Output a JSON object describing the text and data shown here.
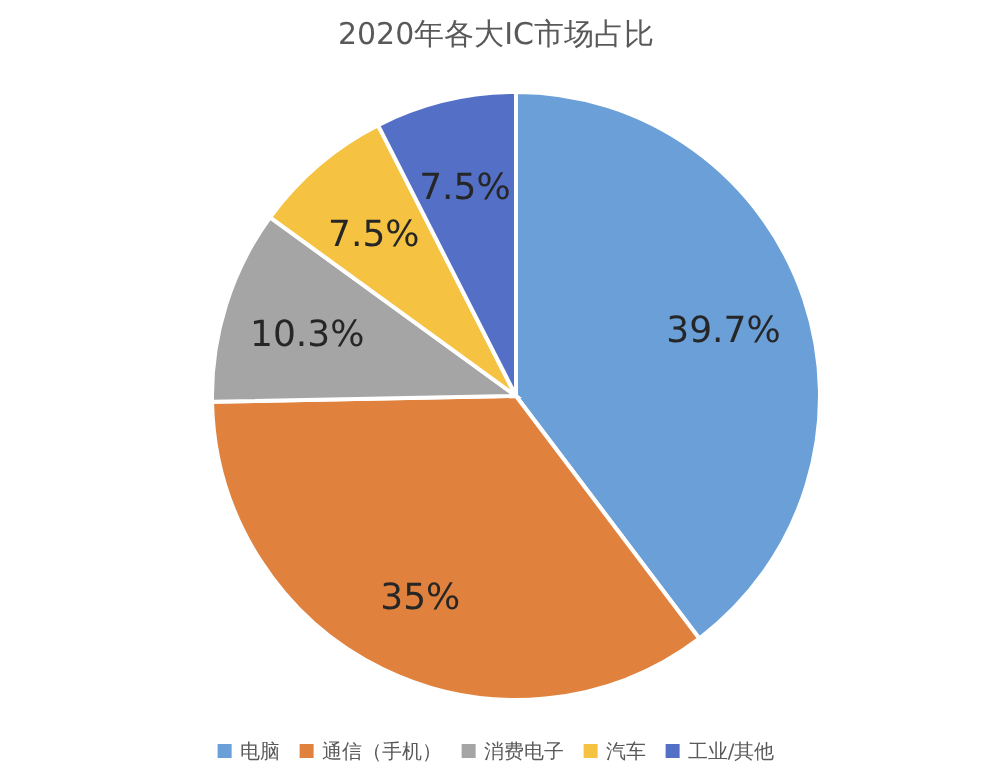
{
  "chart_data": {
    "type": "pie",
    "title": "2020年各大IC市场占比",
    "categories": [
      "电脑",
      "通信（手机）",
      "消费电子",
      "汽车",
      "工业/其他"
    ],
    "values": [
      39.7,
      35,
      10.3,
      7.5,
      7.5
    ],
    "value_labels": [
      "39.7%",
      "35%",
      "10.3%",
      "7.5%",
      "7.5%"
    ],
    "colors": [
      "#6a9fd8",
      "#e0823d",
      "#a5a5a5",
      "#f5c242",
      "#5470c6"
    ],
    "legend": "bottom"
  }
}
